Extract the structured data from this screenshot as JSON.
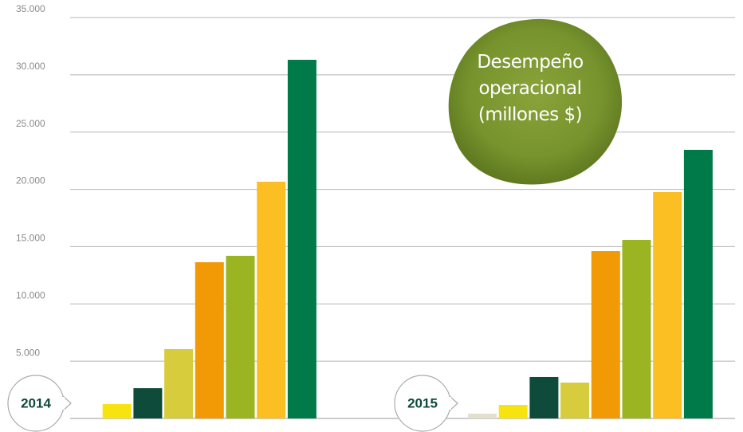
{
  "chart_data": {
    "type": "bar",
    "title": "Desempeño operacional (millones $)",
    "categories": [
      "2014",
      "2015"
    ],
    "series": [
      {
        "color": "#e3dfcf",
        "values": [
          null,
          420
        ]
      },
      {
        "color": "#f7e30f",
        "values": [
          1250,
          1180
        ]
      },
      {
        "color": "#0f4b3a",
        "values": [
          2640,
          3620
        ]
      },
      {
        "color": "#d6cc3c",
        "values": [
          6050,
          3130
        ]
      },
      {
        "color": "#f29a06",
        "values": [
          13640,
          14610
        ]
      },
      {
        "color": "#9ab521",
        "values": [
          14200,
          15590
        ]
      },
      {
        "color": "#fbbf24",
        "values": [
          20670,
          19760
        ]
      },
      {
        "color": "#017a4a",
        "values": [
          31310,
          23450
        ]
      }
    ],
    "ylim": [
      0,
      35000
    ],
    "yticks": [
      {
        "value": 5000,
        "label": "5.000"
      },
      {
        "value": 10000,
        "label": "10.000"
      },
      {
        "value": 15000,
        "label": "15.000"
      },
      {
        "value": 20000,
        "label": "20.000"
      },
      {
        "value": 25000,
        "label": "25.000"
      },
      {
        "value": 30000,
        "label": "30.000"
      },
      {
        "value": 35000,
        "label": "35.000"
      }
    ],
    "grid": true
  }
}
